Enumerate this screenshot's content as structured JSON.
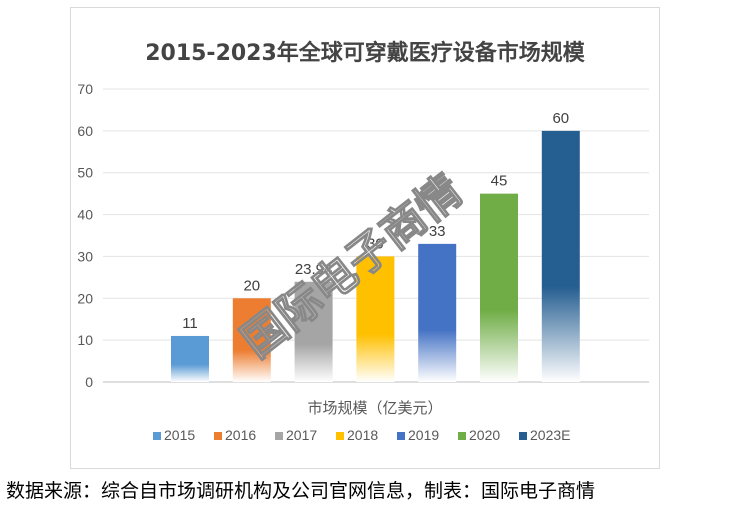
{
  "chart_data": {
    "type": "bar",
    "title": "2015-2023年全球可穿戴医疗设备市场规模",
    "xlabel": "市场规模（亿美元）",
    "ylabel": "",
    "ylim": [
      0,
      70
    ],
    "yticks": [
      "0",
      "10",
      "20",
      "30",
      "40",
      "50",
      "60",
      "70"
    ],
    "grid": true,
    "legend_position": "bottom",
    "categories": [
      "2015",
      "2016",
      "2017",
      "2018",
      "2019",
      "2020",
      "2023E"
    ],
    "values": [
      11,
      20,
      23.94,
      30,
      33,
      45,
      60
    ],
    "value_labels": [
      "11",
      "20",
      "23.94",
      "30",
      "33",
      "45",
      "60"
    ],
    "colors": [
      "#5b9bd5",
      "#ed7d31",
      "#a5a5a5",
      "#ffc000",
      "#4472c4",
      "#70ad47",
      "#255e91"
    ]
  },
  "watermark": "国际电子商情",
  "footer": "数据来源：综合自市场调研机构及公司官网信息，制表：国际电子商情"
}
